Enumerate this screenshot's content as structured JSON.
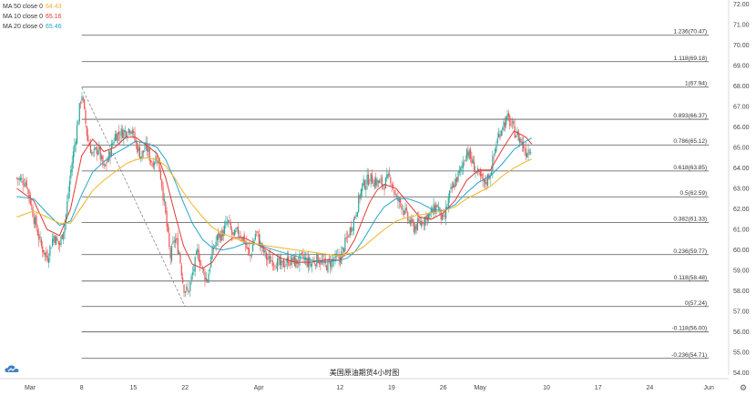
{
  "legend": [
    {
      "label": "MA 50 close 0",
      "value": "64.43",
      "color": "#f0b429"
    },
    {
      "label": "MA 10 close 0",
      "value": "65.16",
      "color": "#e53935"
    },
    {
      "label": "MA 20 close 0",
      "value": "65.46",
      "color": "#26a6c8"
    }
  ],
  "caption": "美国原油期货4小时图",
  "colors": {
    "up": "#2aa69a",
    "down": "#ef5350",
    "fib_line": "#555555",
    "diagonal": "#888888"
  },
  "chart_data": {
    "type": "candlestick",
    "y_axis_side": "right",
    "ylim": [
      53.9,
      72.1
    ],
    "y_ticks": [
      "54.00",
      "55.00",
      "56.00",
      "57.00",
      "58.00",
      "59.00",
      "60.00",
      "61.00",
      "62.00",
      "63.00",
      "64.00",
      "65.00",
      "66.00",
      "67.00",
      "68.00",
      "69.00",
      "70.00",
      "71.00",
      "72.00"
    ],
    "x_ticks": [
      {
        "label": "Mar",
        "day": 1
      },
      {
        "label": "8",
        "day": 8
      },
      {
        "label": "15",
        "day": 15
      },
      {
        "label": "22",
        "day": 22
      },
      {
        "label": "Apr",
        "day": 32
      },
      {
        "label": "12",
        "day": 43
      },
      {
        "label": "19",
        "day": 50
      },
      {
        "label": "26",
        "day": 57
      },
      {
        "label": "May",
        "day": 62
      },
      {
        "label": "10",
        "day": 71
      },
      {
        "label": "17",
        "day": 78
      },
      {
        "label": "24",
        "day": 85
      },
      {
        "label": "Jun",
        "day": 93
      }
    ],
    "fib_levels": [
      {
        "ratio": "1.236",
        "price": 70.47,
        "label": "1.236(70.47)"
      },
      {
        "ratio": "1.118",
        "price": 69.18,
        "label": "1.118(69.18)"
      },
      {
        "ratio": "1",
        "price": 67.94,
        "label": "1(67.94)"
      },
      {
        "ratio": "0.893",
        "price": 66.37,
        "label": "0.893(66.37)"
      },
      {
        "ratio": "0.786",
        "price": 65.12,
        "label": "0.786(65.12)"
      },
      {
        "ratio": "0.618",
        "price": 63.85,
        "label": "0.618(63.85)"
      },
      {
        "ratio": "0.5",
        "price": 62.59,
        "label": "0.5(62.59)"
      },
      {
        "ratio": "0.382",
        "price": 61.33,
        "label": "0.382(61.33)"
      },
      {
        "ratio": "0.236",
        "price": 59.77,
        "label": "0.236(59.77)"
      },
      {
        "ratio": "0.118",
        "price": 58.48,
        "label": "0.118(58.48)"
      },
      {
        "ratio": "0",
        "price": 57.24,
        "label": "0(57.24)"
      },
      {
        "ratio": "-0.118",
        "price": 56.0,
        "label": "-0.118(56.00)"
      },
      {
        "ratio": "-0.236",
        "price": 54.71,
        "label": "-0.236(54.71)"
      }
    ],
    "fib_start_day": 8,
    "fib_end_day": 93,
    "diagonal": {
      "from_day": 8,
      "from_price": 67.94,
      "to_day": 22,
      "to_price": 57.24
    },
    "candle_path": [
      [
        -0.8,
        63.5
      ],
      [
        0.5,
        63.3
      ],
      [
        1.5,
        61.6
      ],
      [
        2.5,
        60.2
      ],
      [
        3.3,
        59.6
      ],
      [
        4.2,
        60.7
      ],
      [
        5.0,
        60.2
      ],
      [
        5.8,
        61.5
      ],
      [
        6.5,
        63.8
      ],
      [
        7.3,
        65.8
      ],
      [
        8.0,
        67.7
      ],
      [
        8.8,
        65.4
      ],
      [
        9.5,
        64.6
      ],
      [
        10.2,
        65.0
      ],
      [
        11.0,
        63.9
      ],
      [
        11.8,
        64.7
      ],
      [
        12.5,
        65.6
      ],
      [
        13.3,
        65.7
      ],
      [
        14.0,
        65.8
      ],
      [
        14.7,
        66.0
      ],
      [
        15.3,
        65.2
      ],
      [
        16.0,
        64.6
      ],
      [
        16.8,
        65.0
      ],
      [
        17.5,
        64.2
      ],
      [
        18.2,
        64.6
      ],
      [
        18.8,
        63.4
      ],
      [
        19.4,
        61.6
      ],
      [
        20.0,
        59.6
      ],
      [
        20.6,
        60.6
      ],
      [
        21.2,
        59.9
      ],
      [
        21.8,
        58.2
      ],
      [
        22.4,
        57.9
      ],
      [
        23.0,
        58.8
      ],
      [
        23.7,
        59.9
      ],
      [
        24.4,
        59.0
      ],
      [
        25.0,
        58.5
      ],
      [
        25.7,
        59.9
      ],
      [
        26.4,
        60.6
      ],
      [
        27.1,
        60.8
      ],
      [
        27.8,
        61.4
      ],
      [
        28.5,
        60.6
      ],
      [
        29.2,
        60.9
      ],
      [
        30.0,
        60.5
      ],
      [
        30.8,
        59.6
      ],
      [
        31.6,
        60.9
      ],
      [
        32.4,
        60.1
      ],
      [
        33.2,
        59.5
      ],
      [
        34.0,
        59.5
      ],
      [
        35.0,
        59.2
      ],
      [
        36.0,
        59.5
      ],
      [
        37.0,
        59.4
      ],
      [
        38.0,
        59.6
      ],
      [
        39.0,
        59.3
      ],
      [
        40.0,
        59.6
      ],
      [
        41.0,
        59.2
      ],
      [
        42.0,
        59.5
      ],
      [
        43.0,
        59.6
      ],
      [
        44.0,
        60.6
      ],
      [
        45.0,
        61.6
      ],
      [
        46.0,
        63.1
      ],
      [
        47.0,
        63.5
      ],
      [
        48.0,
        63.3
      ],
      [
        49.0,
        63.2
      ],
      [
        49.8,
        63.6
      ],
      [
        50.6,
        62.5
      ],
      [
        51.4,
        62.2
      ],
      [
        52.2,
        61.5
      ],
      [
        53.0,
        61.1
      ],
      [
        53.8,
        61.3
      ],
      [
        54.6,
        61.6
      ],
      [
        55.4,
        61.8
      ],
      [
        56.2,
        62.2
      ],
      [
        57.0,
        61.3
      ],
      [
        57.8,
        62.6
      ],
      [
        58.6,
        63.3
      ],
      [
        59.4,
        63.9
      ],
      [
        60.2,
        64.9
      ],
      [
        61.0,
        64.2
      ],
      [
        61.8,
        63.6
      ],
      [
        62.6,
        63.2
      ],
      [
        63.4,
        63.8
      ],
      [
        64.2,
        65.2
      ],
      [
        65.0,
        66.1
      ],
      [
        65.8,
        66.4
      ],
      [
        66.6,
        65.8
      ],
      [
        67.4,
        65.4
      ],
      [
        68.2,
        64.8
      ],
      [
        69.0,
        65.1
      ]
    ],
    "ma_series": [
      {
        "name": "MA 10 close 0",
        "color": "#e53935",
        "points": [
          [
            -0.8,
            63.0
          ],
          [
            1.5,
            62.4
          ],
          [
            3.3,
            61.0
          ],
          [
            5.0,
            60.7
          ],
          [
            6.5,
            62.0
          ],
          [
            8.0,
            64.6
          ],
          [
            9.5,
            65.4
          ],
          [
            11.0,
            64.8
          ],
          [
            12.5,
            65.0
          ],
          [
            14.0,
            65.5
          ],
          [
            15.3,
            65.5
          ],
          [
            16.8,
            65.1
          ],
          [
            18.2,
            64.7
          ],
          [
            19.4,
            63.5
          ],
          [
            20.6,
            61.8
          ],
          [
            21.8,
            60.2
          ],
          [
            23.0,
            59.3
          ],
          [
            24.4,
            59.1
          ],
          [
            25.7,
            59.4
          ],
          [
            27.1,
            60.2
          ],
          [
            28.5,
            60.6
          ],
          [
            30.0,
            60.6
          ],
          [
            31.6,
            60.3
          ],
          [
            33.2,
            60.0
          ],
          [
            35.0,
            59.6
          ],
          [
            37.0,
            59.4
          ],
          [
            39.0,
            59.4
          ],
          [
            41.0,
            59.5
          ],
          [
            43.0,
            59.5
          ],
          [
            44.0,
            59.9
          ],
          [
            45.0,
            60.5
          ],
          [
            46.0,
            61.4
          ],
          [
            47.0,
            62.3
          ],
          [
            48.0,
            62.9
          ],
          [
            49.0,
            63.2
          ],
          [
            50.6,
            63.0
          ],
          [
            52.2,
            62.3
          ],
          [
            53.8,
            61.6
          ],
          [
            55.4,
            61.5
          ],
          [
            57.0,
            61.8
          ],
          [
            58.6,
            62.4
          ],
          [
            60.2,
            63.4
          ],
          [
            61.8,
            63.9
          ],
          [
            63.4,
            63.9
          ],
          [
            65.0,
            64.9
          ],
          [
            66.6,
            65.8
          ],
          [
            68.2,
            65.5
          ],
          [
            69.0,
            65.16
          ]
        ]
      },
      {
        "name": "MA 20 close 0",
        "color": "#26a6c8",
        "points": [
          [
            -0.8,
            62.6
          ],
          [
            1.5,
            62.5
          ],
          [
            3.3,
            61.8
          ],
          [
            5.0,
            61.2
          ],
          [
            6.5,
            61.4
          ],
          [
            8.0,
            62.7
          ],
          [
            9.5,
            63.8
          ],
          [
            11.0,
            64.3
          ],
          [
            12.5,
            64.7
          ],
          [
            14.0,
            65.0
          ],
          [
            15.3,
            65.3
          ],
          [
            16.8,
            65.2
          ],
          [
            18.2,
            65.0
          ],
          [
            19.4,
            64.4
          ],
          [
            20.6,
            63.4
          ],
          [
            21.8,
            62.3
          ],
          [
            23.0,
            61.3
          ],
          [
            24.4,
            60.5
          ],
          [
            25.7,
            60.1
          ],
          [
            27.1,
            60.0
          ],
          [
            28.5,
            60.1
          ],
          [
            30.0,
            60.3
          ],
          [
            31.6,
            60.3
          ],
          [
            33.2,
            60.1
          ],
          [
            35.0,
            59.9
          ],
          [
            37.0,
            59.7
          ],
          [
            39.0,
            59.5
          ],
          [
            41.0,
            59.4
          ],
          [
            43.0,
            59.5
          ],
          [
            44.0,
            59.6
          ],
          [
            45.0,
            59.9
          ],
          [
            46.0,
            60.4
          ],
          [
            47.0,
            61.0
          ],
          [
            48.0,
            61.6
          ],
          [
            49.0,
            62.1
          ],
          [
            50.6,
            62.5
          ],
          [
            52.2,
            62.5
          ],
          [
            53.8,
            62.3
          ],
          [
            55.4,
            62.0
          ],
          [
            57.0,
            61.9
          ],
          [
            58.6,
            62.2
          ],
          [
            60.2,
            62.8
          ],
          [
            61.8,
            63.3
          ],
          [
            63.4,
            63.6
          ],
          [
            65.0,
            64.2
          ],
          [
            66.6,
            64.9
          ],
          [
            68.2,
            65.3
          ],
          [
            69.0,
            65.46
          ]
        ]
      },
      {
        "name": "MA 50 close 0",
        "color": "#f0b429",
        "points": [
          [
            -0.8,
            61.6
          ],
          [
            1.5,
            61.9
          ],
          [
            3.3,
            61.6
          ],
          [
            5.0,
            61.3
          ],
          [
            6.5,
            61.3
          ],
          [
            8.0,
            62.1
          ],
          [
            9.5,
            62.9
          ],
          [
            11.0,
            63.4
          ],
          [
            12.5,
            63.8
          ],
          [
            14.0,
            64.2
          ],
          [
            15.3,
            64.4
          ],
          [
            16.8,
            64.5
          ],
          [
            18.2,
            64.4
          ],
          [
            19.4,
            64.1
          ],
          [
            20.6,
            63.5
          ],
          [
            21.8,
            62.8
          ],
          [
            23.0,
            62.2
          ],
          [
            24.4,
            61.6
          ],
          [
            25.7,
            61.1
          ],
          [
            27.1,
            60.8
          ],
          [
            28.5,
            60.6
          ],
          [
            30.0,
            60.4
          ],
          [
            31.6,
            60.3
          ],
          [
            33.2,
            60.2
          ],
          [
            35.0,
            60.1
          ],
          [
            37.0,
            60.0
          ],
          [
            39.0,
            59.9
          ],
          [
            41.0,
            59.8
          ],
          [
            43.0,
            59.7
          ],
          [
            44.0,
            59.8
          ],
          [
            45.0,
            59.9
          ],
          [
            46.0,
            60.1
          ],
          [
            47.0,
            60.4
          ],
          [
            48.0,
            60.7
          ],
          [
            49.0,
            61.0
          ],
          [
            50.6,
            61.4
          ],
          [
            52.2,
            61.6
          ],
          [
            53.8,
            61.7
          ],
          [
            55.4,
            61.8
          ],
          [
            57.0,
            61.9
          ],
          [
            58.6,
            62.1
          ],
          [
            60.2,
            62.5
          ],
          [
            61.8,
            62.8
          ],
          [
            63.4,
            63.1
          ],
          [
            65.0,
            63.6
          ],
          [
            66.6,
            64.0
          ],
          [
            68.2,
            64.3
          ],
          [
            69.0,
            64.43
          ]
        ]
      }
    ]
  }
}
